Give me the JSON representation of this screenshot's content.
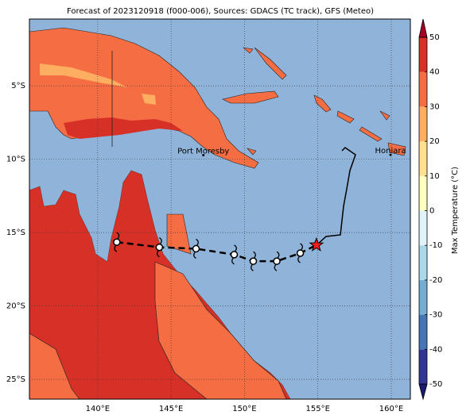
{
  "map": {
    "title": "Forecast of 2023120918 (f000-006), Sources: GDACS (TC track), GFS (Meteo)",
    "xlim": [
      135.35,
      161.3
    ],
    "ylim": [
      -26.35,
      -0.45
    ],
    "xticks": [
      {
        "value": 140,
        "label": "140°E"
      },
      {
        "value": 145,
        "label": "145°E"
      },
      {
        "value": 150,
        "label": "150°E"
      },
      {
        "value": 155,
        "label": "155°E"
      },
      {
        "value": 160,
        "label": "160°E"
      }
    ],
    "yticks": [
      {
        "value": -5,
        "label": "5°S"
      },
      {
        "value": -10,
        "label": "10°S"
      },
      {
        "value": -15,
        "label": "15°S"
      },
      {
        "value": -20,
        "label": "20°S"
      },
      {
        "value": -25,
        "label": "25°S"
      }
    ],
    "grid": true,
    "places": [
      {
        "name": "Port Moresby",
        "lon": 147.2,
        "lat": -9.45
      },
      {
        "name": "Honiara",
        "lon": 159.95,
        "lat": -9.43
      }
    ],
    "track": {
      "lon": [
        141.3,
        144.2,
        146.7,
        149.3,
        150.6,
        152.2,
        153.8
      ],
      "lat": [
        -15.65,
        -16.0,
        -16.1,
        -16.5,
        -16.95,
        -16.95,
        -16.4
      ]
    },
    "current_position": {
      "lon": 154.9,
      "lat": -15.85
    },
    "colorbar": {
      "label": "Max Temperature (°C)",
      "lim": [
        -50,
        50
      ],
      "ticks": [
        -50,
        -40,
        -30,
        -20,
        -10,
        0,
        10,
        20,
        30,
        40,
        50
      ],
      "colors": [
        "#313695",
        "#4575b4",
        "#74add1",
        "#abd9e9",
        "#e0f3f8",
        "#ffffbf",
        "#fee090",
        "#fdae61",
        "#f46d43",
        "#d73027"
      ],
      "under_color": "#1a1a70",
      "over_color": "#a50026"
    }
  }
}
